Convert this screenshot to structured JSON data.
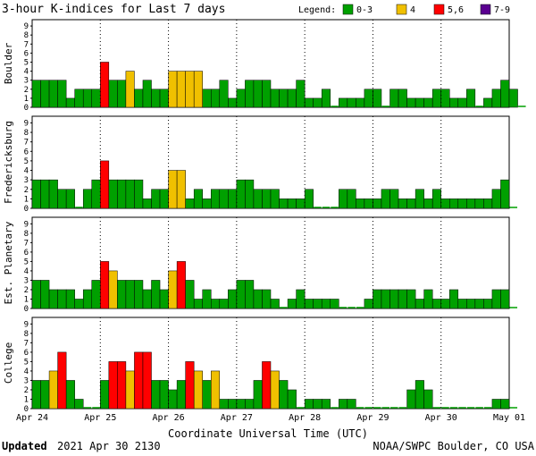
{
  "colors": {
    "green": "#00a000",
    "yellow": "#f0c000",
    "red": "#ff0000",
    "purple": "#5a0090",
    "outline": "#000000",
    "background": "#ffffff"
  },
  "chart_data": {
    "type": "bar",
    "title": "3-hour K-indices for Last 7 days",
    "legend": {
      "label": "Legend:",
      "placement": "top-right",
      "items": [
        {
          "label": "0-3",
          "color": "green"
        },
        {
          "label": "4",
          "color": "yellow"
        },
        {
          "label": "5,6",
          "color": "red"
        },
        {
          "label": "7-9",
          "color": "purple"
        }
      ]
    },
    "ylim": [
      0,
      9
    ],
    "y_ticks": [
      0,
      1,
      2,
      3,
      4,
      5,
      6,
      7,
      8,
      9
    ],
    "xlabel": "Coordinate Universal Time (UTC)",
    "x_ticks": [
      "Apr 24",
      "Apr 25",
      "Apr 26",
      "Apr 27",
      "Apr 28",
      "Apr 29",
      "Apr 30",
      "May 01"
    ],
    "bars_per_day": 8,
    "color_rule": "0-3 green, 4 yellow, 5-6 red, 7-9 purple",
    "series": [
      {
        "name": "Boulder",
        "values": [
          3,
          3,
          3,
          3,
          1,
          2,
          2,
          2,
          5,
          3,
          3,
          4,
          2,
          3,
          2,
          2,
          4,
          4,
          4,
          4,
          2,
          2,
          3,
          1,
          2,
          3,
          3,
          3,
          2,
          2,
          2,
          3,
          1,
          1,
          2,
          0,
          1,
          1,
          1,
          2,
          2,
          0,
          2,
          2,
          1,
          1,
          1,
          2,
          2,
          1,
          1,
          2,
          0,
          1,
          2,
          3,
          2,
          0
        ]
      },
      {
        "name": "Fredericksburg",
        "values": [
          3,
          3,
          3,
          2,
          2,
          0,
          2,
          3,
          5,
          3,
          3,
          3,
          3,
          1,
          2,
          2,
          4,
          4,
          1,
          2,
          1,
          2,
          2,
          2,
          3,
          3,
          2,
          2,
          2,
          1,
          1,
          1,
          2,
          0,
          0,
          0,
          2,
          2,
          1,
          1,
          1,
          2,
          2,
          1,
          1,
          2,
          1,
          2,
          1,
          1,
          1,
          1,
          1,
          1,
          2,
          3,
          0
        ]
      },
      {
        "name": "Est. Planetary",
        "values": [
          3,
          3,
          2,
          2,
          2,
          1,
          2,
          3,
          5,
          4,
          3,
          3,
          3,
          2,
          3,
          2,
          4,
          5,
          3,
          1,
          2,
          1,
          1,
          2,
          3,
          3,
          2,
          2,
          1,
          0,
          1,
          2,
          1,
          1,
          1,
          1,
          0,
          0,
          0,
          1,
          2,
          2,
          2,
          2,
          2,
          1,
          2,
          1,
          1,
          2,
          1,
          1,
          1,
          1,
          2,
          2,
          0
        ]
      },
      {
        "name": "College",
        "values": [
          3,
          3,
          4,
          6,
          3,
          1,
          0,
          0,
          3,
          5,
          5,
          4,
          6,
          6,
          3,
          3,
          2,
          3,
          5,
          4,
          3,
          4,
          1,
          1,
          1,
          1,
          3,
          5,
          4,
          3,
          2,
          0,
          1,
          1,
          1,
          0,
          1,
          1,
          0,
          0,
          0,
          0,
          0,
          0,
          2,
          3,
          2,
          0,
          0,
          0,
          0,
          0,
          0,
          0,
          1,
          1,
          0
        ]
      }
    ]
  },
  "footer": {
    "updated_label": "Updated",
    "updated_value": "2021 Apr 30 2130",
    "source": "NOAA/SWPC Boulder, CO USA"
  }
}
